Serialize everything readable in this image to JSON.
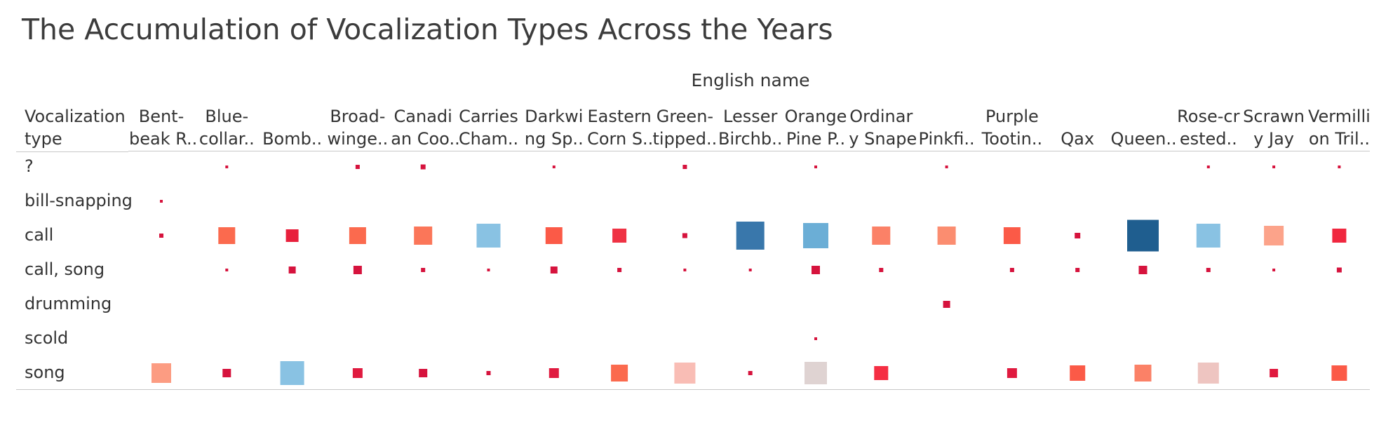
{
  "title": "The Accumulation of Vocalization Types Across the Years",
  "chart_data": {
    "type": "heatmap",
    "mark": "square",
    "title": "The Accumulation of Vocalization Types Across the Years",
    "column_title": "English name",
    "row_title": "Vocalization type",
    "columns": [
      {
        "label": [
          "Bent-",
          "beak R.."
        ]
      },
      {
        "label": [
          "Blue-",
          "collar.."
        ]
      },
      {
        "label": [
          "",
          "Bomb.."
        ]
      },
      {
        "label": [
          "Broad-",
          "winge.."
        ]
      },
      {
        "label": [
          "Canadi",
          "an Coo.."
        ]
      },
      {
        "label": [
          "Carries",
          "Cham.."
        ]
      },
      {
        "label": [
          "Darkwi",
          "ng Sp.."
        ]
      },
      {
        "label": [
          "Eastern",
          "Corn S.."
        ]
      },
      {
        "label": [
          "Green-",
          "tipped.."
        ]
      },
      {
        "label": [
          "Lesser",
          "Birchb.."
        ]
      },
      {
        "label": [
          "Orange",
          "Pine P.."
        ]
      },
      {
        "label": [
          "Ordinar",
          "y Snape"
        ]
      },
      {
        "label": [
          "",
          "Pinkfi.."
        ]
      },
      {
        "label": [
          "Purple",
          "Tootin.."
        ]
      },
      {
        "label": [
          "",
          "Qax"
        ]
      },
      {
        "label": [
          "",
          "Queen.."
        ]
      },
      {
        "label": [
          "Rose-cr",
          "ested.."
        ]
      },
      {
        "label": [
          "Scrawn",
          "y Jay"
        ]
      },
      {
        "label": [
          "Vermilli",
          "on Tril.."
        ]
      }
    ],
    "rows": [
      "?",
      "bill-snapping",
      "call",
      "call, song",
      "drumming",
      "scold",
      "song"
    ],
    "size_scale_max": 45,
    "cells": [
      {
        "row": 0,
        "col": 1,
        "size": 4,
        "color": "#d6133d"
      },
      {
        "row": 0,
        "col": 3,
        "size": 6,
        "color": "#d6133d"
      },
      {
        "row": 0,
        "col": 4,
        "size": 7,
        "color": "#d6133d"
      },
      {
        "row": 0,
        "col": 6,
        "size": 4,
        "color": "#d6133d"
      },
      {
        "row": 0,
        "col": 8,
        "size": 6,
        "color": "#d6133d"
      },
      {
        "row": 0,
        "col": 10,
        "size": 4,
        "color": "#d6133d"
      },
      {
        "row": 0,
        "col": 12,
        "size": 4,
        "color": "#d6133d"
      },
      {
        "row": 0,
        "col": 16,
        "size": 4,
        "color": "#d6133d"
      },
      {
        "row": 0,
        "col": 17,
        "size": 4,
        "color": "#d6133d"
      },
      {
        "row": 0,
        "col": 18,
        "size": 4,
        "color": "#d6133d"
      },
      {
        "row": 1,
        "col": 0,
        "size": 4,
        "color": "#d6133d"
      },
      {
        "row": 2,
        "col": 0,
        "size": 6,
        "color": "#d6133d"
      },
      {
        "row": 2,
        "col": 1,
        "size": 24,
        "color": "#fb6a4e"
      },
      {
        "row": 2,
        "col": 2,
        "size": 18,
        "color": "#e8203c"
      },
      {
        "row": 2,
        "col": 3,
        "size": 24,
        "color": "#fb6a4e"
      },
      {
        "row": 2,
        "col": 4,
        "size": 26,
        "color": "#fb7659"
      },
      {
        "row": 2,
        "col": 5,
        "size": 34,
        "color": "#89c2e3"
      },
      {
        "row": 2,
        "col": 6,
        "size": 24,
        "color": "#fb5a47"
      },
      {
        "row": 2,
        "col": 7,
        "size": 20,
        "color": "#ef3244"
      },
      {
        "row": 2,
        "col": 8,
        "size": 7,
        "color": "#d6133d"
      },
      {
        "row": 2,
        "col": 9,
        "size": 40,
        "color": "#3977ab"
      },
      {
        "row": 2,
        "col": 10,
        "size": 36,
        "color": "#6baed6"
      },
      {
        "row": 2,
        "col": 11,
        "size": 26,
        "color": "#fb8167"
      },
      {
        "row": 2,
        "col": 12,
        "size": 26,
        "color": "#fb8d70"
      },
      {
        "row": 2,
        "col": 13,
        "size": 24,
        "color": "#fb5a47"
      },
      {
        "row": 2,
        "col": 14,
        "size": 8,
        "color": "#d6133d"
      },
      {
        "row": 2,
        "col": 15,
        "size": 45,
        "color": "#1f5e8f"
      },
      {
        "row": 2,
        "col": 16,
        "size": 34,
        "color": "#89c2e3"
      },
      {
        "row": 2,
        "col": 17,
        "size": 28,
        "color": "#fca38a"
      },
      {
        "row": 2,
        "col": 18,
        "size": 20,
        "color": "#f0273f"
      },
      {
        "row": 3,
        "col": 1,
        "size": 4,
        "color": "#d6133d"
      },
      {
        "row": 3,
        "col": 2,
        "size": 10,
        "color": "#d6133d"
      },
      {
        "row": 3,
        "col": 3,
        "size": 12,
        "color": "#d6133d"
      },
      {
        "row": 3,
        "col": 4,
        "size": 6,
        "color": "#d6133d"
      },
      {
        "row": 3,
        "col": 5,
        "size": 4,
        "color": "#d6133d"
      },
      {
        "row": 3,
        "col": 6,
        "size": 10,
        "color": "#d6133d"
      },
      {
        "row": 3,
        "col": 7,
        "size": 6,
        "color": "#d6133d"
      },
      {
        "row": 3,
        "col": 8,
        "size": 4,
        "color": "#d6133d"
      },
      {
        "row": 3,
        "col": 9,
        "size": 4,
        "color": "#d6133d"
      },
      {
        "row": 3,
        "col": 10,
        "size": 12,
        "color": "#d6133d"
      },
      {
        "row": 3,
        "col": 11,
        "size": 6,
        "color": "#d6133d"
      },
      {
        "row": 3,
        "col": 13,
        "size": 6,
        "color": "#d6133d"
      },
      {
        "row": 3,
        "col": 14,
        "size": 6,
        "color": "#d6133d"
      },
      {
        "row": 3,
        "col": 15,
        "size": 12,
        "color": "#d6133d"
      },
      {
        "row": 3,
        "col": 16,
        "size": 6,
        "color": "#d6133d"
      },
      {
        "row": 3,
        "col": 17,
        "size": 4,
        "color": "#d6133d"
      },
      {
        "row": 3,
        "col": 18,
        "size": 7,
        "color": "#d6133d"
      },
      {
        "row": 4,
        "col": 12,
        "size": 10,
        "color": "#d6133d"
      },
      {
        "row": 5,
        "col": 10,
        "size": 4,
        "color": "#d6133d"
      },
      {
        "row": 6,
        "col": 0,
        "size": 28,
        "color": "#fc9c82"
      },
      {
        "row": 6,
        "col": 1,
        "size": 12,
        "color": "#d6133d"
      },
      {
        "row": 6,
        "col": 2,
        "size": 34,
        "color": "#89c2e3"
      },
      {
        "row": 6,
        "col": 3,
        "size": 14,
        "color": "#e01a3f"
      },
      {
        "row": 6,
        "col": 4,
        "size": 12,
        "color": "#d6133d"
      },
      {
        "row": 6,
        "col": 5,
        "size": 6,
        "color": "#d6133d"
      },
      {
        "row": 6,
        "col": 6,
        "size": 14,
        "color": "#e01a3f"
      },
      {
        "row": 6,
        "col": 7,
        "size": 24,
        "color": "#fb6a4e"
      },
      {
        "row": 6,
        "col": 8,
        "size": 30,
        "color": "#f9bdb5"
      },
      {
        "row": 6,
        "col": 9,
        "size": 6,
        "color": "#d6133d"
      },
      {
        "row": 6,
        "col": 10,
        "size": 32,
        "color": "#dfd3d2"
      },
      {
        "row": 6,
        "col": 11,
        "size": 20,
        "color": "#f52e43"
      },
      {
        "row": 6,
        "col": 13,
        "size": 14,
        "color": "#e01a3f"
      },
      {
        "row": 6,
        "col": 14,
        "size": 22,
        "color": "#fb5a47"
      },
      {
        "row": 6,
        "col": 15,
        "size": 24,
        "color": "#fb8167"
      },
      {
        "row": 6,
        "col": 16,
        "size": 30,
        "color": "#eec5c1"
      },
      {
        "row": 6,
        "col": 17,
        "size": 12,
        "color": "#e01a3f"
      },
      {
        "row": 6,
        "col": 18,
        "size": 22,
        "color": "#fb5a47"
      }
    ]
  }
}
